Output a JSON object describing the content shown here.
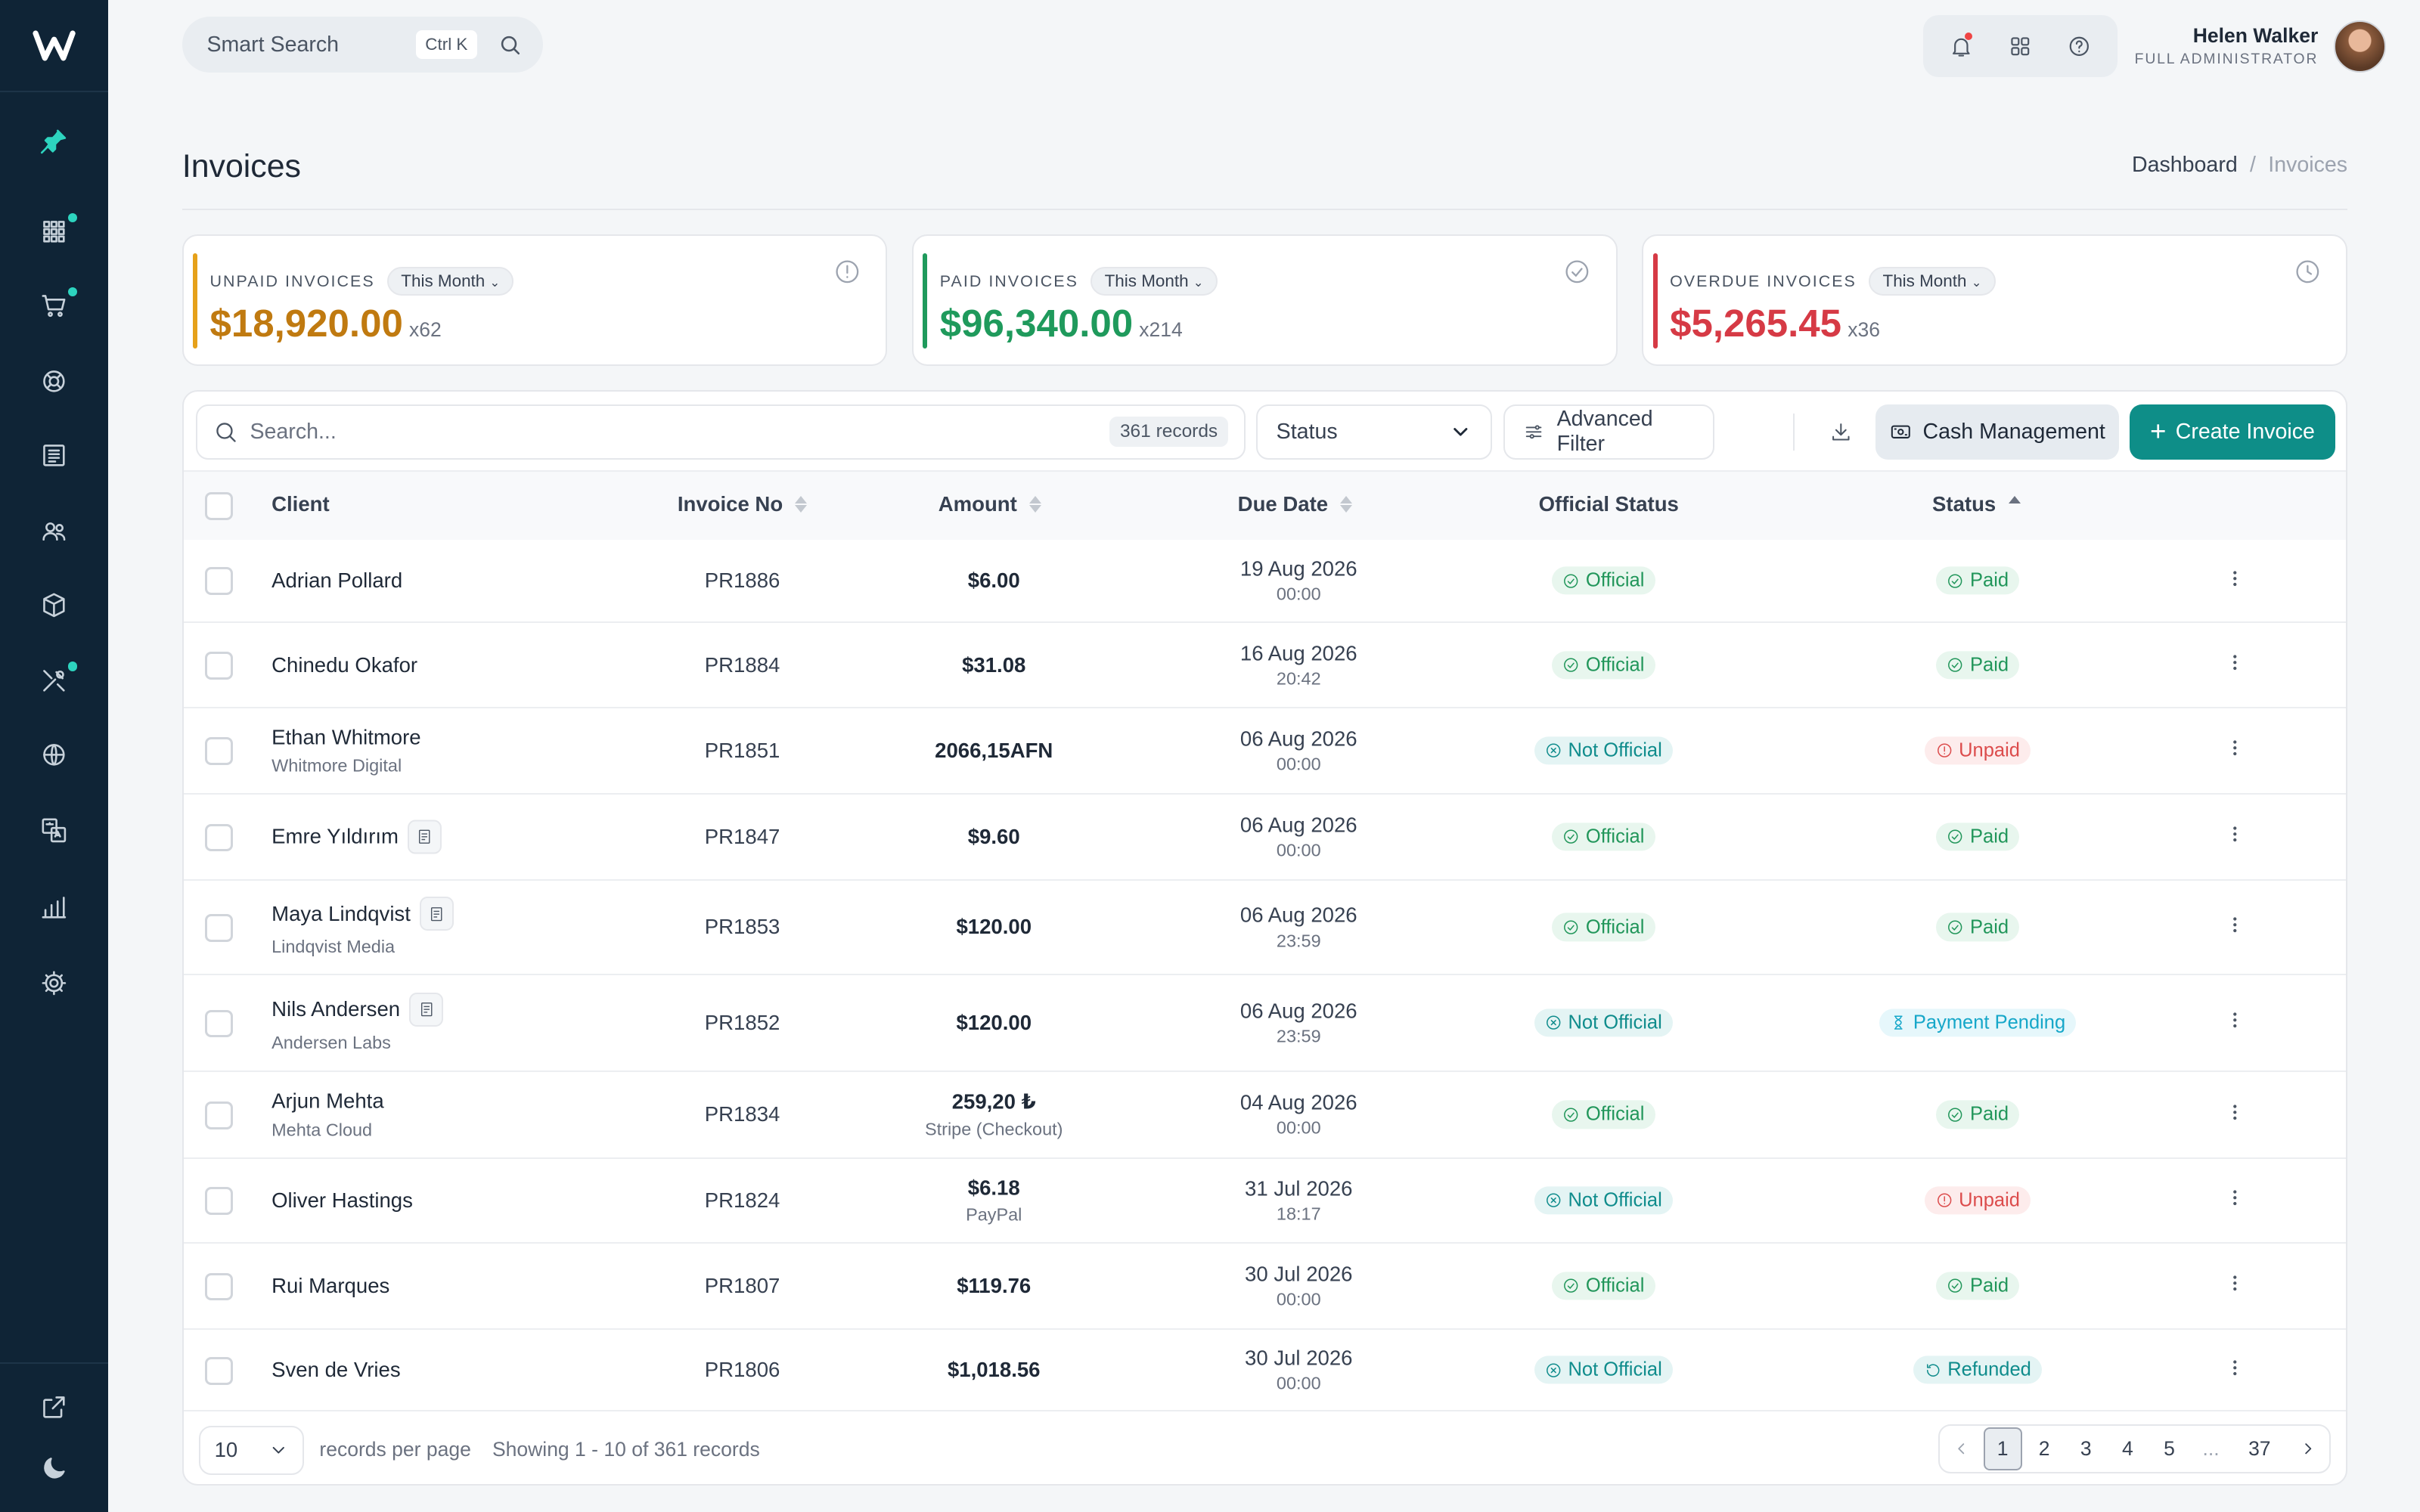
{
  "topbar": {
    "search_label": "Smart Search",
    "search_shortcut": "Ctrl K",
    "user_name": "Helen Walker",
    "user_role": "FULL ADMINISTRATOR"
  },
  "page": {
    "title": "Invoices",
    "breadcrumb": [
      "Dashboard",
      "Invoices"
    ]
  },
  "summary_cards": [
    {
      "label": "UNPAID INVOICES",
      "period": "This Month",
      "amount": "$18,920.00",
      "count": "x62",
      "color": "#c07a10"
    },
    {
      "label": "PAID INVOICES",
      "period": "This Month",
      "amount": "$96,340.00",
      "count": "x214",
      "color": "#1f9a5c"
    },
    {
      "label": "OVERDUE INVOICES",
      "period": "This Month",
      "amount": "$5,265.45",
      "count": "x36",
      "color": "#d63a45"
    }
  ],
  "toolbar": {
    "search_placeholder": "Search...",
    "records_badge": "361 records",
    "status_filter": "Status",
    "advanced_filter": "Advanced Filter",
    "cash_management": "Cash Management",
    "create_invoice": "Create Invoice",
    "accent": "#0e8e88"
  },
  "table": {
    "columns": [
      "Client",
      "Invoice No",
      "Amount",
      "Due Date",
      "Official Status",
      "Status"
    ],
    "rows": [
      {
        "client": "Adrian Pollard",
        "company": "",
        "note": false,
        "invoice": "PR1886",
        "amount": "$6.00",
        "method": "",
        "date": "19 Aug 2026",
        "time": "00:00",
        "official": "Official",
        "status": "Paid"
      },
      {
        "client": "Chinedu Okafor",
        "company": "",
        "note": false,
        "invoice": "PR1884",
        "amount": "$31.08",
        "method": "",
        "date": "16 Aug 2026",
        "time": "20:42",
        "official": "Official",
        "status": "Paid"
      },
      {
        "client": "Ethan Whitmore",
        "company": "Whitmore Digital",
        "note": false,
        "invoice": "PR1851",
        "amount": "2066,15AFN",
        "method": "",
        "date": "06 Aug 2026",
        "time": "00:00",
        "official": "Not Official",
        "status": "Unpaid"
      },
      {
        "client": "Emre Yıldırım",
        "company": "",
        "note": true,
        "invoice": "PR1847",
        "amount": "$9.60",
        "method": "",
        "date": "06 Aug 2026",
        "time": "00:00",
        "official": "Official",
        "status": "Paid"
      },
      {
        "client": "Maya Lindqvist",
        "company": "Lindqvist Media",
        "note": true,
        "invoice": "PR1853",
        "amount": "$120.00",
        "method": "",
        "date": "06 Aug 2026",
        "time": "23:59",
        "official": "Official",
        "status": "Paid"
      },
      {
        "client": "Nils Andersen",
        "company": "Andersen Labs",
        "note": true,
        "invoice": "PR1852",
        "amount": "$120.00",
        "method": "",
        "date": "06 Aug 2026",
        "time": "23:59",
        "official": "Not Official",
        "status": "Payment Pending"
      },
      {
        "client": "Arjun Mehta",
        "company": "Mehta Cloud",
        "note": false,
        "invoice": "PR1834",
        "amount": "259,20 ₺",
        "method": "Stripe (Checkout)",
        "date": "04 Aug 2026",
        "time": "00:00",
        "official": "Official",
        "status": "Paid"
      },
      {
        "client": "Oliver Hastings",
        "company": "",
        "note": false,
        "invoice": "PR1824",
        "amount": "$6.18",
        "method": "PayPal",
        "date": "31 Jul 2026",
        "time": "18:17",
        "official": "Not Official",
        "status": "Unpaid"
      },
      {
        "client": "Rui Marques",
        "company": "",
        "note": false,
        "invoice": "PR1807",
        "amount": "$119.76",
        "method": "",
        "date": "30 Jul 2026",
        "time": "00:00",
        "official": "Official",
        "status": "Paid"
      },
      {
        "client": "Sven de Vries",
        "company": "",
        "note": false,
        "invoice": "PR1806",
        "amount": "$1,018.56",
        "method": "",
        "date": "30 Jul 2026",
        "time": "00:00",
        "official": "Not Official",
        "status": "Refunded"
      }
    ]
  },
  "footer": {
    "per_page": "10",
    "per_page_label": "records per page",
    "showing": "Showing 1 - 10 of 361 records",
    "pages": [
      "1",
      "2",
      "3",
      "4",
      "5",
      "...",
      "37"
    ],
    "current_page": "1"
  },
  "sidebar_icons": [
    "pin-icon",
    "apps-icon",
    "cart-icon",
    "support-icon",
    "invoice-icon",
    "users-icon",
    "box-icon",
    "tools-icon",
    "globe-icon",
    "translate-icon",
    "chart-icon",
    "settings-icon",
    "external-link-icon",
    "moon-icon"
  ]
}
